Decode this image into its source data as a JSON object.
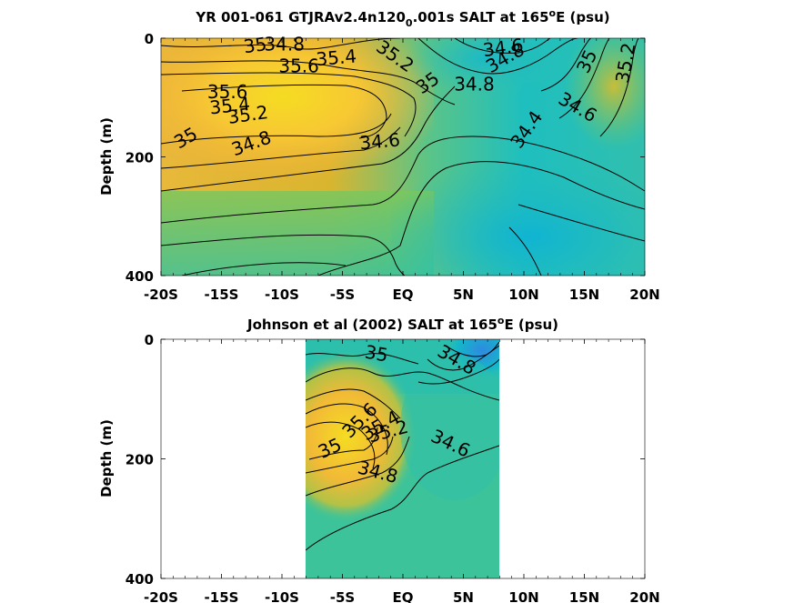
{
  "chart_data": [
    {
      "type": "heatmap",
      "title_main": "YR 001-061 GTJRAv2.4n120",
      "title_sub": "0",
      "title_rest": ".001s SALT at 165",
      "title_sup": "o",
      "title_end": "E (psu)",
      "ylabel": "Depth (m)",
      "xlim": [
        -20,
        20
      ],
      "ylim": [
        0,
        400
      ],
      "y_reversed": true,
      "x_ticks": [
        -20,
        -15,
        -10,
        -5,
        0,
        5,
        10,
        15,
        20
      ],
      "x_tick_labels": [
        "-20S",
        "-15S",
        "-10S",
        "-5S",
        "EQ",
        "5N",
        "10N",
        "15N",
        "20N"
      ],
      "y_ticks": [
        0,
        200,
        400
      ],
      "y_tick_labels": [
        "0",
        "200",
        "400"
      ],
      "colormap": [
        "#2f8ae0",
        "#14b6c9",
        "#3ac29a",
        "#8cc855",
        "#d8ba2e",
        "#f5d022",
        "#f8ae3a"
      ],
      "data_extent_x": [
        -20,
        20
      ],
      "contour_labels": [
        {
          "text": "34.8",
          "x": -9.8,
          "y": 12,
          "rot": 0
        },
        {
          "text": "35",
          "x": -12.2,
          "y": 14,
          "rot": -8
        },
        {
          "text": "34.6",
          "x": 8.3,
          "y": 18,
          "rot": -8
        },
        {
          "text": "35.2",
          "x": -0.7,
          "y": 32,
          "rot": 35
        },
        {
          "text": "35.4",
          "x": -5.5,
          "y": 35,
          "rot": -5
        },
        {
          "text": "34.8",
          "x": 8.5,
          "y": 35,
          "rot": -30
        },
        {
          "text": "35",
          "x": 15.3,
          "y": 40,
          "rot": -65
        },
        {
          "text": "35.2",
          "x": 18.5,
          "y": 42,
          "rot": -80
        },
        {
          "text": "35.6",
          "x": -8.6,
          "y": 49,
          "rot": 0
        },
        {
          "text": "35",
          "x": 2.1,
          "y": 77,
          "rot": -35
        },
        {
          "text": "34.8",
          "x": 5.9,
          "y": 80,
          "rot": 0
        },
        {
          "text": "35.6",
          "x": -14.5,
          "y": 93,
          "rot": 0
        },
        {
          "text": "35.4",
          "x": -14.3,
          "y": 116,
          "rot": -6
        },
        {
          "text": "34.6",
          "x": 14.4,
          "y": 118,
          "rot": 30
        },
        {
          "text": "35.2",
          "x": -12.8,
          "y": 131,
          "rot": -8
        },
        {
          "text": "34.4",
          "x": 10.3,
          "y": 155,
          "rot": -55
        },
        {
          "text": "35",
          "x": -17.9,
          "y": 170,
          "rot": -30
        },
        {
          "text": "34.6",
          "x": -1.9,
          "y": 176,
          "rot": -5
        },
        {
          "text": "34.8",
          "x": -12.5,
          "y": 179,
          "rot": -20
        }
      ]
    },
    {
      "type": "heatmap",
      "title_main": "Johnson et al (2002) SALT at 165",
      "title_sup": "o",
      "title_end": "E (psu)",
      "ylabel": "Depth (m)",
      "xlim": [
        -20,
        20
      ],
      "ylim": [
        0,
        400
      ],
      "y_reversed": true,
      "x_ticks": [
        -20,
        -15,
        -10,
        -5,
        0,
        5,
        10,
        15,
        20
      ],
      "x_tick_labels": [
        "-20S",
        "-15S",
        "-10S",
        "-5S",
        "EQ",
        "5N",
        "10N",
        "15N",
        "20N"
      ],
      "y_ticks": [
        0,
        200,
        400
      ],
      "y_tick_labels": [
        "0",
        "200",
        "400"
      ],
      "colormap": [
        "#2f8ae0",
        "#14b6c9",
        "#3ac29a",
        "#8cc855",
        "#d8ba2e",
        "#f5d022",
        "#f8ae3a"
      ],
      "data_extent_x": [
        -8,
        8
      ],
      "contour_labels": [
        {
          "text": "35",
          "x": -2.2,
          "y": 26,
          "rot": 10
        },
        {
          "text": "34.8",
          "x": 4.4,
          "y": 36,
          "rot": 30
        },
        {
          "text": "35.6",
          "x": -3.5,
          "y": 137,
          "rot": -45
        },
        {
          "text": "35.4",
          "x": -1.8,
          "y": 146,
          "rot": -30
        },
        {
          "text": "35.2",
          "x": -1.2,
          "y": 156,
          "rot": -15
        },
        {
          "text": "34.6",
          "x": 3.9,
          "y": 176,
          "rot": 25
        },
        {
          "text": "35",
          "x": -6.0,
          "y": 184,
          "rot": -25
        },
        {
          "text": "34.8",
          "x": -2.1,
          "y": 224,
          "rot": 15
        }
      ]
    }
  ]
}
